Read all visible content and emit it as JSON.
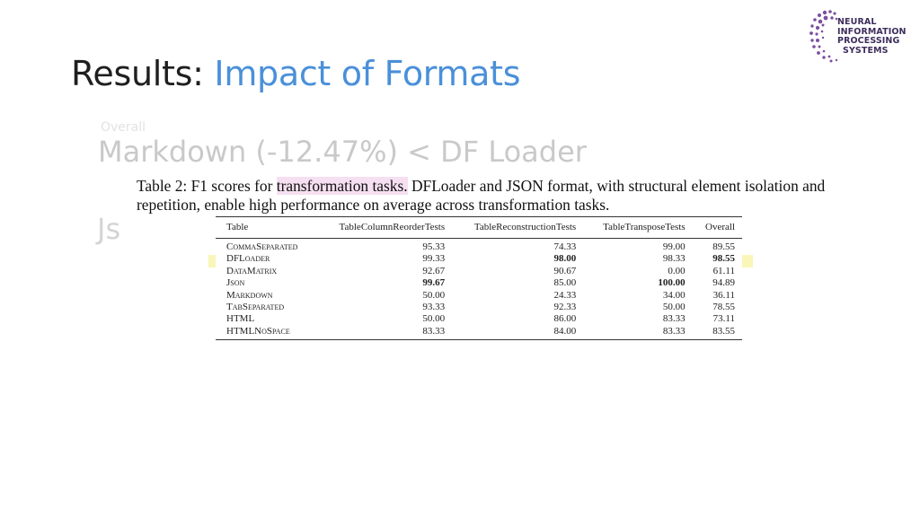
{
  "slide": {
    "title_prefix": "Results:",
    "title_suffix": "Impact of Formats",
    "ghost_small": "Overall",
    "ghost_big": "Markdown (-12.47%) < DF Loader",
    "ghost_js": "Js"
  },
  "logo": {
    "line1": "NEURAL",
    "line2": "INFORMATION",
    "line3": "PROCESSING",
    "line4": "SYSTEMS"
  },
  "caption": {
    "part1": "Table 2: F1 scores for ",
    "highlight": "transformation tasks.",
    "part2": " DFLoader and JSON format, with structural element isolation and repetition, enable high performance on average across transformation tasks."
  },
  "table": {
    "headers": [
      "Table",
      "TableColumnReorderTests",
      "TableReconstructionTests",
      "TableTransposeTests",
      "Overall"
    ],
    "rows": [
      {
        "name": "CommaSeparated",
        "cols": [
          "95.33",
          "74.33",
          "99.00",
          "89.55"
        ],
        "highlighted": false,
        "bold": []
      },
      {
        "name": "DFLoader",
        "cols": [
          "99.33",
          "98.00",
          "98.33",
          "98.55"
        ],
        "highlighted": true,
        "bold": [
          1,
          3
        ]
      },
      {
        "name": "DataMatrix",
        "cols": [
          "92.67",
          "90.67",
          "0.00",
          "61.11"
        ],
        "highlighted": false,
        "bold": []
      },
      {
        "name": "Json",
        "cols": [
          "99.67",
          "85.00",
          "100.00",
          "94.89"
        ],
        "highlighted": false,
        "bold": [
          0,
          2
        ]
      },
      {
        "name": "Markdown",
        "cols": [
          "50.00",
          "24.33",
          "34.00",
          "36.11"
        ],
        "highlighted": false,
        "bold": []
      },
      {
        "name": "TabSeparated",
        "cols": [
          "93.33",
          "92.33",
          "50.00",
          "78.55"
        ],
        "highlighted": false,
        "bold": []
      },
      {
        "name": "HTML",
        "cols": [
          "50.00",
          "86.00",
          "83.33",
          "73.11"
        ],
        "highlighted": false,
        "bold": []
      },
      {
        "name": "HTMLNoSpace",
        "cols": [
          "83.33",
          "84.00",
          "83.33",
          "83.55"
        ],
        "highlighted": false,
        "bold": []
      }
    ]
  }
}
